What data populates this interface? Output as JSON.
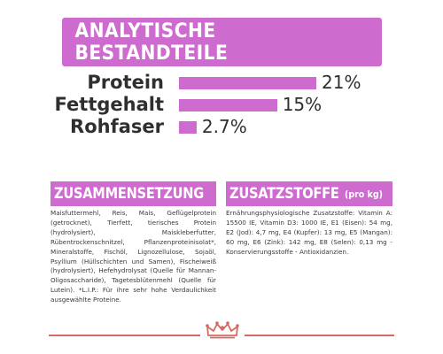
{
  "banner": {
    "title": "ANALYTISCHE BESTANDTEILE"
  },
  "analysis": [
    {
      "label": "Protein",
      "value": "21%",
      "percent": 21
    },
    {
      "label": "Fettgehalt",
      "value": "15%",
      "percent": 15
    },
    {
      "label": "Rohfaser",
      "value": "2.7%",
      "percent": 2.7
    }
  ],
  "composition": {
    "title": "ZUSAMMENSETZUNG",
    "text": "Maisfuttermehl, Reis, Mais, Geflügelprotein (getrocknet), Tierfett, tierisches Protein (hydrolysiert), Maiskleberfutter, Rübentrockenschnitzel, Pflanzenproteinisolat*, Mineralstoffe, Fischöl, Lignozellulose, Sojaöl, Psyllium (Hüllschichten und Samen), Fischeiweiß (hydrolysiert), Hefehydrolysat (Quelle für Mannan-Oligosaccharide), Tagetesblütenmehl (Quelle für Lutein). *L.I.P.: Für ihre sehr hohe Verdaulichkeit ausgewählte Proteine."
  },
  "additives": {
    "title": "ZUSATZSTOFFE",
    "subtitle": "(pro kg)",
    "text": "Ernährungsphysiologische Zusatzstoffe: Vitamin A: 15500 IE, Vitamin D3: 1000 IE, E1 (Eisen): 54 mg, E2 (Jod): 4,7 mg, E4 (Kupfer): 13 mg, E5 (Mangan): 60 mg, E6 (Zink): 142 mg, E8 (Selen): 0,13 mg - Konservierungsstoffe - Antioxidanzien."
  },
  "colors": {
    "accent": "#cd6bce",
    "footer_line": "#d46a62",
    "crown": "#d46a62"
  },
  "footer": {
    "logo_icon": "crown-icon"
  }
}
